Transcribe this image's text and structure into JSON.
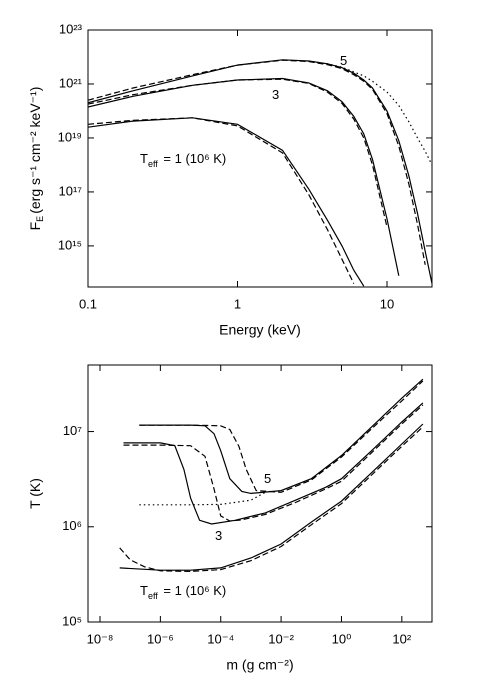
{
  "chart_data": [
    {
      "type": "line",
      "xscale": "log",
      "yscale": "log",
      "xlabel": "Energy (keV)",
      "ylabel": [
        "F",
        "E",
        "(erg s⁻¹ cm⁻² keV⁻¹)"
      ],
      "xlim": [
        0.1,
        20
      ],
      "ylim": [
        30000000000000.0,
        1e+23
      ],
      "xticks": [
        0.1,
        1,
        10
      ],
      "yticks": [
        {
          "value": 1000000000000000.0,
          "label": "10¹⁵"
        },
        {
          "value": 1e+17,
          "label": "10¹⁷"
        },
        {
          "value": 1e+19,
          "label": "10¹⁹"
        },
        {
          "value": 1e+21,
          "label": "10²¹"
        },
        {
          "value": 1e+23,
          "label": "10²³"
        }
      ],
      "annotations": [
        [
          "5"
        ],
        [
          "3"
        ],
        [
          "T",
          "eff",
          " = 1 (10⁶ K)"
        ]
      ],
      "x": [
        0.1,
        0.2,
        0.5,
        1,
        2,
        3,
        4,
        5,
        6,
        7,
        8,
        10,
        12,
        14,
        16,
        18,
        20
      ],
      "series": [
        {
          "color": "#000000",
          "style": "solid",
          "values": [
            2e+20,
            5.6e+20,
            2e+21,
            5e+21,
            7.9e+21,
            7.1e+21,
            5.6e+21,
            4e+21,
            2.5e+21,
            1.4e+21,
            7.1e+20,
            1e+20,
            7.9e+18,
            4e+17,
            1.6e+16,
            630000000000000.0,
            40000000000000.0
          ]
        },
        {
          "color": "#000000",
          "style": "dashed",
          "values": [
            2.5e+20,
            7.1e+20,
            2.2e+21,
            5e+21,
            7.6e+21,
            6.8e+21,
            5.2e+21,
            3.7e+21,
            2.2e+21,
            1.26e+21,
            6.3e+20,
            7.9e+19,
            5e+18,
            2e+17,
            6300000000000000.0,
            200000000000000.0,
            null
          ]
        },
        {
          "color": "#000000",
          "style": "dotted",
          "values": [
            null,
            null,
            null,
            null,
            null,
            7.1e+21,
            5.6e+21,
            4.2e+21,
            2.8e+21,
            2e+21,
            1.26e+21,
            5e+20,
            1.6e+20,
            4e+19,
            1e+19,
            3.2e+18,
            1e+18
          ]
        },
        {
          "color": "#000000",
          "style": "solid",
          "values": [
            1.4e+20,
            3.5e+20,
            8.9e+20,
            1.4e+21,
            1.6e+21,
            1.1e+21,
            5.6e+20,
            2.2e+20,
            6.3e+19,
            1.4e+19,
            1.6e+18,
            1e+16,
            79000000000000.0,
            null,
            null,
            null,
            null
          ]
        },
        {
          "color": "#000000",
          "style": "dashed",
          "values": [
            1.8e+20,
            4e+20,
            8.9e+20,
            1.4e+21,
            1.5e+21,
            1.05e+21,
            5e+20,
            1.9e+20,
            5e+19,
            1e+19,
            1e+18,
            5000000000000000.0,
            null,
            null,
            null,
            null,
            null
          ]
        },
        {
          "color": "#000000",
          "style": "solid",
          "values": [
            2.5e+19,
            4.2e+19,
            5.6e+19,
            3.2e+19,
            3.5e+18,
            1.26e+17,
            8900000000000000.0,
            1000000000000000.0,
            126000000000000.0,
            32000000000000.0,
            null,
            null,
            null,
            null,
            null,
            null,
            null
          ]
        },
        {
          "color": "#000000",
          "style": "dashed",
          "values": [
            3.2e+19,
            4.5e+19,
            5.6e+19,
            2.8e+19,
            2.8e+18,
            7.9e+16,
            4000000000000000.0,
            320000000000000.0,
            40000000000000.0,
            null,
            null,
            null,
            null,
            null,
            null,
            null,
            null
          ]
        }
      ]
    },
    {
      "type": "line",
      "xscale": "log",
      "yscale": "log",
      "xlabel": "m (g cm⁻²)",
      "ylabel": [
        "T (K)"
      ],
      "xlim": [
        4e-09,
        1000
      ],
      "ylim": [
        100000.0,
        50000000.0
      ],
      "xticks": [
        {
          "value": 1e-08,
          "label": "10⁻⁸"
        },
        {
          "value": 1e-06,
          "label": "10⁻⁶"
        },
        {
          "value": 0.0001,
          "label": "10⁻⁴"
        },
        {
          "value": 0.01,
          "label": "10⁻²"
        },
        {
          "value": 1,
          "label": "10⁰"
        },
        {
          "value": 100,
          "label": "10²"
        }
      ],
      "yticks": [
        {
          "value": 100000.0,
          "label": "10⁵"
        },
        {
          "value": 1000000.0,
          "label": "10⁶"
        },
        {
          "value": 10000000.0,
          "label": "10⁷"
        }
      ],
      "annotations": [
        [
          "5"
        ],
        [
          "3"
        ],
        [
          "T",
          "eff",
          " = 1 (10⁶ K)"
        ]
      ],
      "series": [
        {
          "color": "#000000",
          "style": "solid",
          "x": [
            2e-07,
            1e-05,
            3e-05,
            6e-05,
            0.0001,
            0.0002,
            0.0005,
            0.001,
            0.01,
            0.1,
            1,
            10,
            100,
            500
          ],
          "values": [
            11700000.0,
            11700000.0,
            11500000.0,
            9500000.0,
            6300000.0,
            3200000.0,
            2350000.0,
            2240000.0,
            2400000.0,
            3200000.0,
            5600000.0,
            11200000.0,
            22400000.0,
            35500000.0
          ]
        },
        {
          "color": "#000000",
          "style": "dashed",
          "x": [
            2e-07,
            1e-05,
            0.0001,
            0.0002,
            0.0004,
            0.0007,
            0.0015,
            0.01,
            0.1,
            1,
            10,
            100,
            500
          ],
          "values": [
            11700000.0,
            11700000.0,
            11500000.0,
            10500000.0,
            7000000.0,
            4000000.0,
            2400000.0,
            2300000.0,
            3100000.0,
            5400000.0,
            10700000.0,
            21000000.0,
            34000000.0
          ]
        },
        {
          "color": "#000000",
          "style": "solid",
          "x": [
            6e-08,
            1e-06,
            3e-06,
            6e-06,
            1e-05,
            2e-05,
            5e-05,
            0.0003,
            0.003,
            0.03,
            0.3,
            1,
            10,
            100,
            500
          ],
          "values": [
            7600000.0,
            7600000.0,
            7100000.0,
            4000000.0,
            2000000.0,
            1170000.0,
            1070000.0,
            1170000.0,
            1400000.0,
            1900000.0,
            2600000.0,
            3200000.0,
            6300000.0,
            12600000.0,
            20000000.0
          ]
        },
        {
          "color": "#000000",
          "style": "dashed",
          "x": [
            6e-08,
            1e-06,
            1e-05,
            3e-05,
            6e-05,
            0.0001,
            0.0002,
            0.0005,
            0.003,
            0.03,
            0.3,
            1,
            10,
            100,
            500
          ],
          "values": [
            7200000.0,
            7200000.0,
            7100000.0,
            5500000.0,
            2500000.0,
            1300000.0,
            1150000.0,
            1180000.0,
            1350000.0,
            1800000.0,
            2500000.0,
            3000000.0,
            6000000.0,
            12000000.0,
            19000000.0
          ]
        },
        {
          "color": "#000000",
          "style": "solid",
          "x": [
            4.5e-08,
            1e-06,
            1e-05,
            0.0001,
            0.001,
            0.01,
            0.1,
            1,
            10,
            100,
            500
          ],
          "values": [
            370000.0,
            350000.0,
            350000.0,
            370000.0,
            470000.0,
            660000.0,
            1120000.0,
            1860000.0,
            3700000.0,
            7400000.0,
            12000000.0
          ]
        },
        {
          "color": "#000000",
          "style": "dashed",
          "x": [
            4.5e-08,
            1e-07,
            3e-07,
            1e-06,
            1e-05,
            0.0001,
            0.001,
            0.01,
            0.1,
            1,
            10,
            100,
            500
          ],
          "values": [
            600000.0,
            450000.0,
            380000.0,
            345000.0,
            340000.0,
            355000.0,
            440000.0,
            620000.0,
            1050000.0,
            1750000.0,
            3500000.0,
            7000000.0,
            11200000.0
          ]
        },
        {
          "color": "#000000",
          "style": "dotted",
          "x": [
            2e-07,
            1e-05,
            0.0001,
            0.001,
            0.003
          ],
          "values": [
            1700000.0,
            1700000.0,
            1720000.0,
            1900000.0,
            2300000.0
          ]
        }
      ]
    }
  ]
}
